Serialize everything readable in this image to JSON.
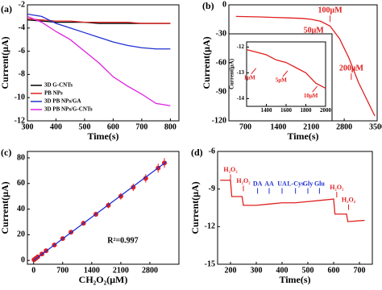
{
  "chart_data": [
    {
      "type": "line",
      "label": "(a)",
      "x_label": "Time(s)",
      "y_label": "Current(μA)",
      "x": [
        300,
        350,
        400,
        450,
        500,
        550,
        600,
        650,
        700,
        750,
        800
      ],
      "xlim": [
        300,
        830
      ],
      "xticks": [
        300,
        400,
        500,
        600,
        700,
        800
      ],
      "ylim": [
        -12,
        -2
      ],
      "yticks": [
        -12,
        -10,
        -8,
        -6,
        -4,
        -2
      ],
      "legend": "lower left",
      "series": [
        {
          "name": "3D G-CNTs",
          "color": "#000000",
          "values": [
            -3.3,
            -3.4,
            -3.5,
            -3.5,
            -3.5,
            -3.6,
            -3.6,
            -3.6,
            -3.6,
            -3.6,
            -3.6
          ]
        },
        {
          "name": "PB NPs",
          "color": "#e02020",
          "values": [
            -3.2,
            -3.3,
            -3.4,
            -3.4,
            -3.5,
            -3.5,
            -3.5,
            -3.5,
            -3.6,
            -3.6,
            -3.6
          ]
        },
        {
          "name": "3D PB NPs/GA",
          "color": "#2030d0",
          "values": [
            -2.8,
            -3.0,
            -3.6,
            -4.0,
            -4.4,
            -4.8,
            -5.2,
            -5.5,
            -5.7,
            -5.8,
            -5.8
          ]
        },
        {
          "name": "3D PB NPs/G-CNTs",
          "color": "#e020e0",
          "values": [
            -3.0,
            -3.5,
            -4.3,
            -5.0,
            -6.0,
            -7.0,
            -8.2,
            -9.0,
            -9.7,
            -10.5,
            -10.7
          ]
        }
      ]
    },
    {
      "type": "line",
      "label": "(b)",
      "x_label": "Time(s)",
      "y_label": "Current(μA)",
      "x": [
        500,
        700,
        1000,
        1300,
        1600,
        1900,
        2100,
        2300,
        2500,
        2700,
        2900,
        3100,
        3300,
        3450
      ],
      "xlim": [
        350,
        3500
      ],
      "xticks": [
        700,
        1400,
        2100,
        2800,
        3500
      ],
      "ylim": [
        -120,
        0
      ],
      "yticks": [
        -120,
        -90,
        -60,
        -30,
        0
      ],
      "annotations": [
        "100μM",
        "50μM",
        "200μM"
      ],
      "series": [
        {
          "color": "#e02020",
          "values": [
            -12,
            -12.2,
            -12.5,
            -13,
            -13.5,
            -14,
            -15,
            -17,
            -22,
            -35,
            -55,
            -80,
            -100,
            -115
          ]
        }
      ]
    },
    {
      "type": "line",
      "y_label": "Current(μA)",
      "x": [
        1200,
        1300,
        1400,
        1500,
        1600,
        1700,
        1800,
        1900,
        2000
      ],
      "xlim": [
        1200,
        2000
      ],
      "xticks": [
        1400,
        1600,
        1800,
        2000
      ],
      "ylim": [
        -14.3,
        -11.8
      ],
      "yticks": [
        -14,
        -13,
        -12
      ],
      "annotations": [
        "1μM",
        "5μM",
        "10μM"
      ],
      "series": [
        {
          "color": "#e02020",
          "values": [
            -12.1,
            -12.2,
            -12.3,
            -12.5,
            -12.6,
            -12.8,
            -13.0,
            -13.4,
            -13.6
          ]
        }
      ]
    },
    {
      "type": "scatter",
      "label": "(c)",
      "x_label": "CH₂O₂(μM)",
      "y_label": "Current(μA)",
      "x": [
        10,
        50,
        100,
        200,
        300,
        500,
        700,
        900,
        1200,
        1500,
        1800,
        2100,
        2400,
        2700,
        3000,
        3150
      ],
      "xlim": [
        -150,
        3500
      ],
      "xticks": [
        0,
        700,
        1400,
        2100,
        2800
      ],
      "ylim": [
        -3,
        85
      ],
      "yticks": [
        0,
        20,
        40,
        60,
        80
      ],
      "annotations": [
        "R²=0.997"
      ],
      "series": [
        {
          "color": "#e02020",
          "values": [
            0.5,
            1.5,
            2.7,
            5,
            7.5,
            12,
            17,
            22,
            29,
            36,
            43,
            50,
            57,
            64,
            72,
            76
          ],
          "errors": [
            0.3,
            0.4,
            0.5,
            0.6,
            0.8,
            1,
            1.2,
            1.4,
            1.7,
            2,
            2.3,
            2.6,
            2.9,
            3.2,
            3.5,
            3.8
          ]
        },
        {
          "type": "line",
          "color": "#2030d0",
          "x": [
            0,
            3200
          ],
          "values": [
            0,
            77
          ]
        }
      ]
    },
    {
      "type": "line",
      "label": "(d)",
      "x_label": "Time(s)",
      "y_label": "Current(μA)",
      "x": [
        160,
        200,
        205,
        245,
        250,
        300,
        350,
        400,
        450,
        500,
        550,
        600,
        605,
        650,
        655,
        720
      ],
      "xlim": [
        150,
        750
      ],
      "xticks": [
        200,
        300,
        400,
        500,
        600,
        700
      ],
      "ylim": [
        -15,
        -6
      ],
      "yticks": [
        -15,
        -12,
        -9,
        -6
      ],
      "annotations": [
        "H₂O₂",
        "H₂O₂",
        "DA",
        "AA",
        "UA",
        "L-Cys",
        "Gly",
        "Glu",
        "H₂O₂",
        "H₂O₂"
      ],
      "series": [
        {
          "color": "#e02020",
          "values": [
            -8.3,
            -8.3,
            -9.6,
            -9.6,
            -10.3,
            -10.3,
            -10.2,
            -10.1,
            -10.1,
            -10.0,
            -9.9,
            -9.8,
            -11.0,
            -11.0,
            -11.6,
            -11.5
          ]
        }
      ]
    }
  ]
}
